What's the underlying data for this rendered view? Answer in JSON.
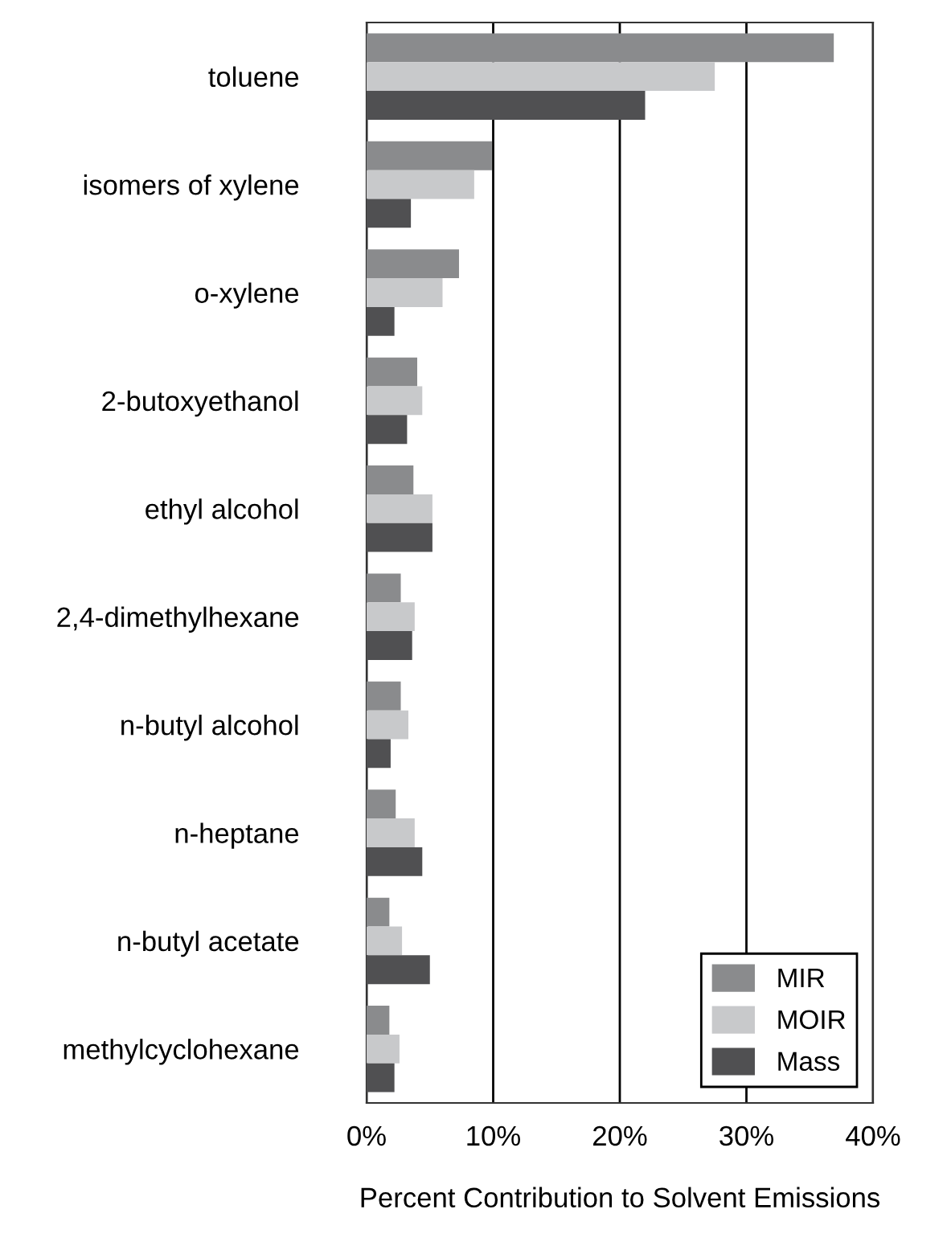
{
  "chart_data": {
    "type": "bar",
    "orientation": "horizontal",
    "xlabel": "Percent Contribution to Solvent Emissions",
    "categories": [
      "toluene",
      "isomers of xylene",
      "o-xylene",
      "2-butoxyethanol",
      "ethyl alcohol",
      "2,4-dimethylhexane",
      "n-butyl alcohol",
      "n-heptane",
      "n-butyl acetate",
      "methylcyclohexane"
    ],
    "series": [
      {
        "name": "MIR",
        "color": "#8a8b8d",
        "values": [
          36.9,
          9.9,
          7.3,
          4.0,
          3.7,
          2.7,
          2.7,
          2.3,
          1.8,
          1.8
        ]
      },
      {
        "name": "MOIR",
        "color": "#c8c9cb",
        "values": [
          27.5,
          8.5,
          6.0,
          4.4,
          5.2,
          3.8,
          3.3,
          3.8,
          2.8,
          2.6
        ]
      },
      {
        "name": "Mass",
        "color": "#505052",
        "values": [
          22.0,
          3.5,
          2.2,
          3.2,
          5.2,
          3.6,
          1.9,
          4.4,
          5.0,
          2.2
        ]
      }
    ],
    "xlim": [
      0,
      40
    ],
    "xticks": [
      {
        "value": 0,
        "label": "0%"
      },
      {
        "value": 10,
        "label": "10%"
      },
      {
        "value": 20,
        "label": "20%"
      },
      {
        "value": 30,
        "label": "30%"
      },
      {
        "value": 40,
        "label": "40%"
      }
    ],
    "grid": "x",
    "legend": "bottom right"
  }
}
